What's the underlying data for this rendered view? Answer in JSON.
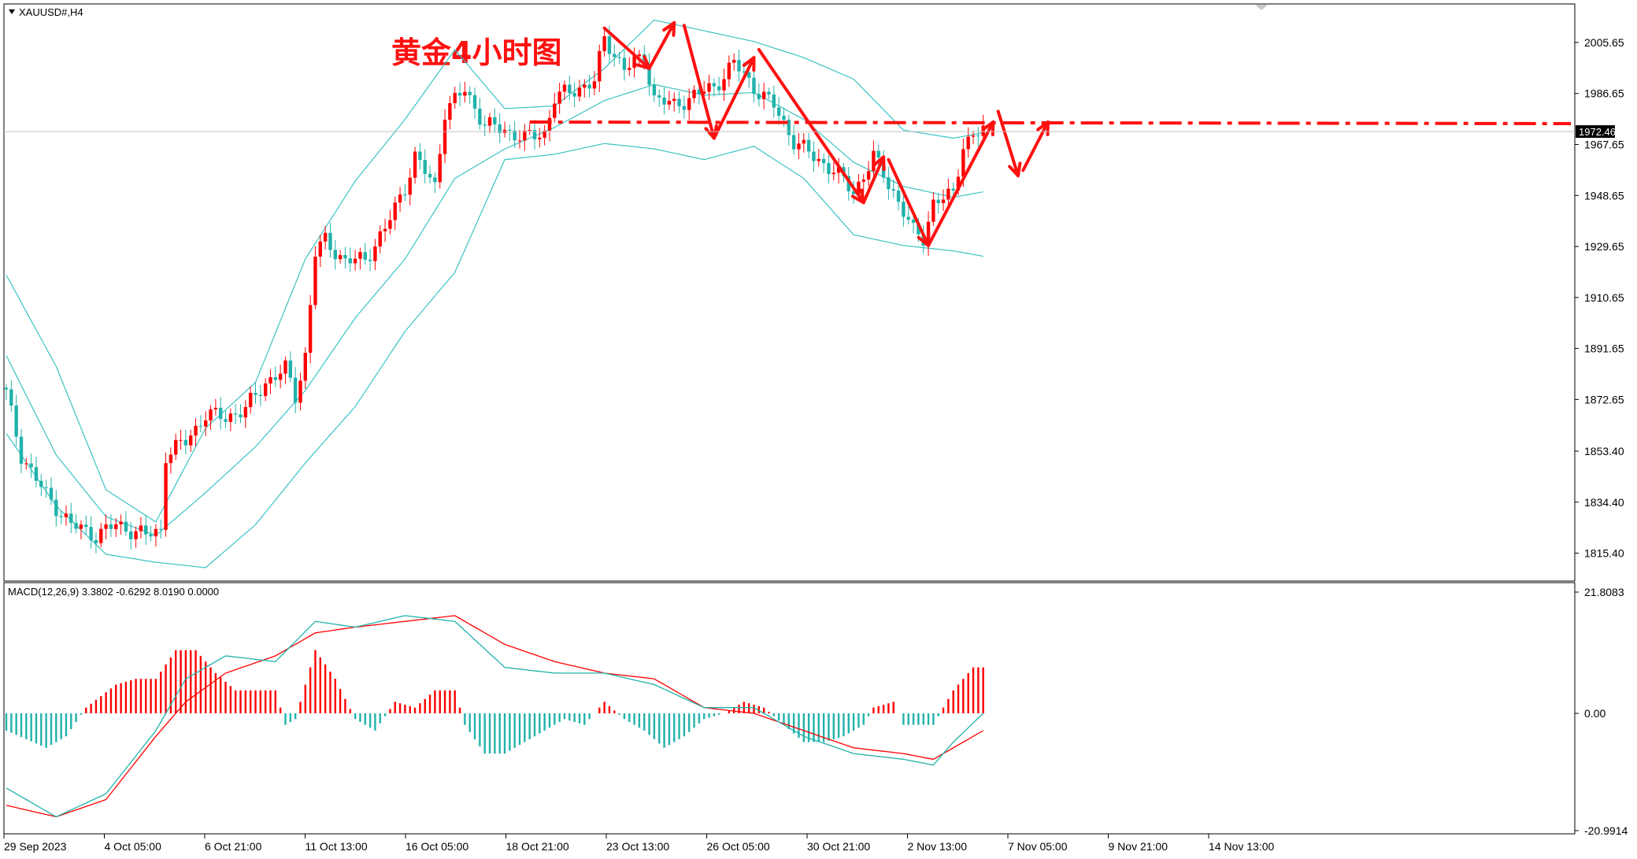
{
  "window": {
    "symbol_label": "XAUUSD#,H4",
    "title_annotation": "黄金4小时图",
    "current_price": "1972.46"
  },
  "colors": {
    "up": "#ff0000",
    "down": "#20b2aa",
    "band": "#3cc3c3",
    "macd_line": "#20b2aa",
    "signal_line": "#ff0000",
    "annotation": "#ff1010",
    "grid_frame": "#000000"
  },
  "chart_data": [
    {
      "type": "candlestick",
      "name": "main",
      "y_ticks": [
        "2005.65",
        "1986.65",
        "1967.65",
        "1948.65",
        "1929.65",
        "1910.65",
        "1891.65",
        "1872.65",
        "1853.40",
        "1834.40",
        "1815.40"
      ],
      "ylim": [
        1805,
        2020
      ],
      "x_ticks": [
        "29 Sep 2023",
        "4 Oct 05:00",
        "6 Oct 21:00",
        "11 Oct 13:00",
        "16 Oct 05:00",
        "18 Oct 21:00",
        "23 Oct 13:00",
        "26 Oct 05:00",
        "30 Oct 21:00",
        "2 Nov 13:00",
        "7 Nov 05:00",
        "9 Nov 21:00",
        "14 Nov 13:00"
      ],
      "current_price": 1972.46,
      "resistance_level": 1976,
      "close_path": [
        {
          "i": 0,
          "v": 1875
        },
        {
          "i": 3,
          "v": 1852
        },
        {
          "i": 8,
          "v": 1837
        },
        {
          "i": 13,
          "v": 1826
        },
        {
          "i": 18,
          "v": 1822
        },
        {
          "i": 22,
          "v": 1826
        },
        {
          "i": 28,
          "v": 1822
        },
        {
          "i": 31,
          "v": 1824
        },
        {
          "i": 32,
          "v": 1852
        },
        {
          "i": 36,
          "v": 1857
        },
        {
          "i": 40,
          "v": 1867
        },
        {
          "i": 44,
          "v": 1866
        },
        {
          "i": 48,
          "v": 1869
        },
        {
          "i": 52,
          "v": 1879
        },
        {
          "i": 56,
          "v": 1884
        },
        {
          "i": 58,
          "v": 1874
        },
        {
          "i": 60,
          "v": 1889
        },
        {
          "i": 62,
          "v": 1927
        },
        {
          "i": 64,
          "v": 1932
        },
        {
          "i": 68,
          "v": 1924
        },
        {
          "i": 72,
          "v": 1925
        },
        {
          "i": 76,
          "v": 1936
        },
        {
          "i": 80,
          "v": 1952
        },
        {
          "i": 82,
          "v": 1963
        },
        {
          "i": 86,
          "v": 1952
        },
        {
          "i": 88,
          "v": 1980
        },
        {
          "i": 92,
          "v": 1988
        },
        {
          "i": 96,
          "v": 1975
        },
        {
          "i": 100,
          "v": 1973
        },
        {
          "i": 104,
          "v": 1970
        },
        {
          "i": 108,
          "v": 1972
        },
        {
          "i": 110,
          "v": 1985
        },
        {
          "i": 114,
          "v": 1988
        },
        {
          "i": 118,
          "v": 1991
        },
        {
          "i": 120,
          "v": 2007
        },
        {
          "i": 124,
          "v": 1996
        },
        {
          "i": 128,
          "v": 2000
        },
        {
          "i": 130,
          "v": 1985
        },
        {
          "i": 134,
          "v": 1982
        },
        {
          "i": 138,
          "v": 1986
        },
        {
          "i": 142,
          "v": 1989
        },
        {
          "i": 146,
          "v": 1998
        },
        {
          "i": 150,
          "v": 1989
        },
        {
          "i": 154,
          "v": 1982
        },
        {
          "i": 158,
          "v": 1969
        },
        {
          "i": 162,
          "v": 1963
        },
        {
          "i": 166,
          "v": 1958
        },
        {
          "i": 170,
          "v": 1950
        },
        {
          "i": 172,
          "v": 1956
        },
        {
          "i": 174,
          "v": 1963
        },
        {
          "i": 178,
          "v": 1950
        },
        {
          "i": 182,
          "v": 1935
        },
        {
          "i": 184,
          "v": 1933
        },
        {
          "i": 186,
          "v": 1946
        },
        {
          "i": 190,
          "v": 1949
        },
        {
          "i": 192,
          "v": 1968
        },
        {
          "i": 196,
          "v": 1973
        }
      ],
      "bands": {
        "middle": [
          {
            "i": 0,
            "v": 1889
          },
          {
            "i": 10,
            "v": 1852
          },
          {
            "i": 20,
            "v": 1829
          },
          {
            "i": 30,
            "v": 1822
          },
          {
            "i": 40,
            "v": 1838
          },
          {
            "i": 50,
            "v": 1855
          },
          {
            "i": 60,
            "v": 1876
          },
          {
            "i": 70,
            "v": 1903
          },
          {
            "i": 80,
            "v": 1925
          },
          {
            "i": 90,
            "v": 1955
          },
          {
            "i": 100,
            "v": 1966
          },
          {
            "i": 110,
            "v": 1974
          },
          {
            "i": 120,
            "v": 1984
          },
          {
            "i": 130,
            "v": 1990
          },
          {
            "i": 140,
            "v": 1986
          },
          {
            "i": 150,
            "v": 1987
          },
          {
            "i": 160,
            "v": 1977
          },
          {
            "i": 170,
            "v": 1961
          },
          {
            "i": 180,
            "v": 1952
          },
          {
            "i": 190,
            "v": 1948
          },
          {
            "i": 196,
            "v": 1950
          }
        ],
        "upper": [
          {
            "i": 0,
            "v": 1919
          },
          {
            "i": 10,
            "v": 1885
          },
          {
            "i": 20,
            "v": 1839
          },
          {
            "i": 30,
            "v": 1827
          },
          {
            "i": 40,
            "v": 1862
          },
          {
            "i": 50,
            "v": 1879
          },
          {
            "i": 60,
            "v": 1925
          },
          {
            "i": 70,
            "v": 1954
          },
          {
            "i": 80,
            "v": 1977
          },
          {
            "i": 90,
            "v": 2003
          },
          {
            "i": 100,
            "v": 1981
          },
          {
            "i": 110,
            "v": 1982
          },
          {
            "i": 120,
            "v": 1996
          },
          {
            "i": 130,
            "v": 2014
          },
          {
            "i": 140,
            "v": 2010
          },
          {
            "i": 150,
            "v": 2006
          },
          {
            "i": 160,
            "v": 2000
          },
          {
            "i": 170,
            "v": 1992
          },
          {
            "i": 180,
            "v": 1973
          },
          {
            "i": 190,
            "v": 1970
          },
          {
            "i": 196,
            "v": 1972
          }
        ],
        "lower": [
          {
            "i": 0,
            "v": 1860
          },
          {
            "i": 10,
            "v": 1833
          },
          {
            "i": 20,
            "v": 1815
          },
          {
            "i": 30,
            "v": 1812
          },
          {
            "i": 40,
            "v": 1810
          },
          {
            "i": 50,
            "v": 1826
          },
          {
            "i": 60,
            "v": 1849
          },
          {
            "i": 70,
            "v": 1870
          },
          {
            "i": 80,
            "v": 1898
          },
          {
            "i": 90,
            "v": 1920
          },
          {
            "i": 100,
            "v": 1962
          },
          {
            "i": 110,
            "v": 1964
          },
          {
            "i": 120,
            "v": 1968
          },
          {
            "i": 130,
            "v": 1966
          },
          {
            "i": 140,
            "v": 1962
          },
          {
            "i": 150,
            "v": 1967
          },
          {
            "i": 160,
            "v": 1955
          },
          {
            "i": 170,
            "v": 1934
          },
          {
            "i": 180,
            "v": 1930
          },
          {
            "i": 190,
            "v": 1928
          },
          {
            "i": 196,
            "v": 1926
          }
        ]
      },
      "arrows": [
        [
          {
            "i": 120,
            "v": 2011
          },
          {
            "i": 129,
            "v": 1996
          }
        ],
        [
          {
            "i": 129,
            "v": 1996
          },
          {
            "i": 134,
            "v": 2013
          }
        ],
        [
          {
            "i": 136,
            "v": 2012
          },
          {
            "i": 142,
            "v": 1970
          }
        ],
        [
          {
            "i": 142,
            "v": 1970
          },
          {
            "i": 150,
            "v": 2000
          }
        ],
        [
          {
            "i": 151,
            "v": 2003
          },
          {
            "i": 172,
            "v": 1946
          }
        ],
        [
          {
            "i": 172,
            "v": 1946
          },
          {
            "i": 176,
            "v": 1963
          }
        ],
        [
          {
            "i": 177,
            "v": 1962
          },
          {
            "i": 185,
            "v": 1930
          }
        ],
        [
          {
            "i": 185,
            "v": 1930
          },
          {
            "i": 198,
            "v": 1976
          }
        ],
        [
          {
            "i": 199,
            "v": 1980
          },
          {
            "i": 203,
            "v": 1956
          }
        ],
        [
          {
            "i": 204,
            "v": 1958
          },
          {
            "i": 209,
            "v": 1976
          }
        ]
      ]
    },
    {
      "type": "bar+line",
      "name": "macd",
      "label": "MACD(12,26,9) 3.3802 -0.6292 8.0190 0.0000",
      "y_ticks": [
        "21.8083",
        "0.00",
        "-20.9914"
      ],
      "ylim": [
        -20.9914,
        21.8083
      ],
      "histogram": [
        {
          "i": 0,
          "v": -3
        },
        {
          "i": 8,
          "v": -6
        },
        {
          "i": 12,
          "v": -4
        },
        {
          "i": 16,
          "v": 1
        },
        {
          "i": 22,
          "v": 5
        },
        {
          "i": 26,
          "v": 6
        },
        {
          "i": 30,
          "v": 6
        },
        {
          "i": 34,
          "v": 11
        },
        {
          "i": 38,
          "v": 11
        },
        {
          "i": 42,
          "v": 7
        },
        {
          "i": 46,
          "v": 4
        },
        {
          "i": 50,
          "v": 4
        },
        {
          "i": 54,
          "v": 4
        },
        {
          "i": 56,
          "v": -2
        },
        {
          "i": 58,
          "v": -1
        },
        {
          "i": 60,
          "v": 5
        },
        {
          "i": 62,
          "v": 11
        },
        {
          "i": 66,
          "v": 6
        },
        {
          "i": 70,
          "v": -1
        },
        {
          "i": 74,
          "v": -3
        },
        {
          "i": 78,
          "v": 2
        },
        {
          "i": 82,
          "v": 1
        },
        {
          "i": 86,
          "v": 4
        },
        {
          "i": 90,
          "v": 4
        },
        {
          "i": 92,
          "v": -2
        },
        {
          "i": 96,
          "v": -7
        },
        {
          "i": 100,
          "v": -7
        },
        {
          "i": 104,
          "v": -5
        },
        {
          "i": 108,
          "v": -3
        },
        {
          "i": 112,
          "v": -1
        },
        {
          "i": 116,
          "v": -2
        },
        {
          "i": 120,
          "v": 2
        },
        {
          "i": 124,
          "v": -1
        },
        {
          "i": 128,
          "v": -3
        },
        {
          "i": 132,
          "v": -6
        },
        {
          "i": 136,
          "v": -4
        },
        {
          "i": 140,
          "v": -1
        },
        {
          "i": 144,
          "v": 0
        },
        {
          "i": 148,
          "v": 2
        },
        {
          "i": 152,
          "v": 1
        },
        {
          "i": 156,
          "v": -2
        },
        {
          "i": 160,
          "v": -5
        },
        {
          "i": 164,
          "v": -5
        },
        {
          "i": 168,
          "v": -4
        },
        {
          "i": 172,
          "v": -2
        },
        {
          "i": 174,
          "v": 1
        },
        {
          "i": 178,
          "v": 2
        },
        {
          "i": 180,
          "v": -2
        },
        {
          "i": 184,
          "v": -2
        },
        {
          "i": 186,
          "v": -2
        },
        {
          "i": 188,
          "v": 1
        },
        {
          "i": 190,
          "v": 4
        },
        {
          "i": 194,
          "v": 8
        },
        {
          "i": 196,
          "v": 8
        }
      ],
      "macd_line": [
        {
          "i": 0,
          "v": -13
        },
        {
          "i": 10,
          "v": -18
        },
        {
          "i": 20,
          "v": -14
        },
        {
          "i": 30,
          "v": -3
        },
        {
          "i": 36,
          "v": 6
        },
        {
          "i": 44,
          "v": 10
        },
        {
          "i": 54,
          "v": 9
        },
        {
          "i": 62,
          "v": 16
        },
        {
          "i": 70,
          "v": 15
        },
        {
          "i": 80,
          "v": 17
        },
        {
          "i": 90,
          "v": 16
        },
        {
          "i": 100,
          "v": 8
        },
        {
          "i": 110,
          "v": 7
        },
        {
          "i": 120,
          "v": 7
        },
        {
          "i": 130,
          "v": 5
        },
        {
          "i": 140,
          "v": 1
        },
        {
          "i": 150,
          "v": 1
        },
        {
          "i": 160,
          "v": -4
        },
        {
          "i": 170,
          "v": -7
        },
        {
          "i": 180,
          "v": -8
        },
        {
          "i": 186,
          "v": -9
        },
        {
          "i": 190,
          "v": -5
        },
        {
          "i": 196,
          "v": 0
        }
      ],
      "signal_line": [
        {
          "i": 0,
          "v": -16
        },
        {
          "i": 10,
          "v": -18
        },
        {
          "i": 20,
          "v": -15
        },
        {
          "i": 30,
          "v": -4
        },
        {
          "i": 36,
          "v": 2
        },
        {
          "i": 44,
          "v": 7
        },
        {
          "i": 54,
          "v": 10
        },
        {
          "i": 62,
          "v": 14
        },
        {
          "i": 70,
          "v": 15
        },
        {
          "i": 80,
          "v": 16
        },
        {
          "i": 90,
          "v": 17
        },
        {
          "i": 100,
          "v": 12
        },
        {
          "i": 110,
          "v": 9
        },
        {
          "i": 120,
          "v": 7
        },
        {
          "i": 130,
          "v": 6
        },
        {
          "i": 140,
          "v": 1
        },
        {
          "i": 150,
          "v": 0
        },
        {
          "i": 160,
          "v": -3
        },
        {
          "i": 170,
          "v": -6
        },
        {
          "i": 180,
          "v": -7
        },
        {
          "i": 186,
          "v": -8
        },
        {
          "i": 190,
          "v": -6
        },
        {
          "i": 196,
          "v": -3
        }
      ]
    }
  ]
}
